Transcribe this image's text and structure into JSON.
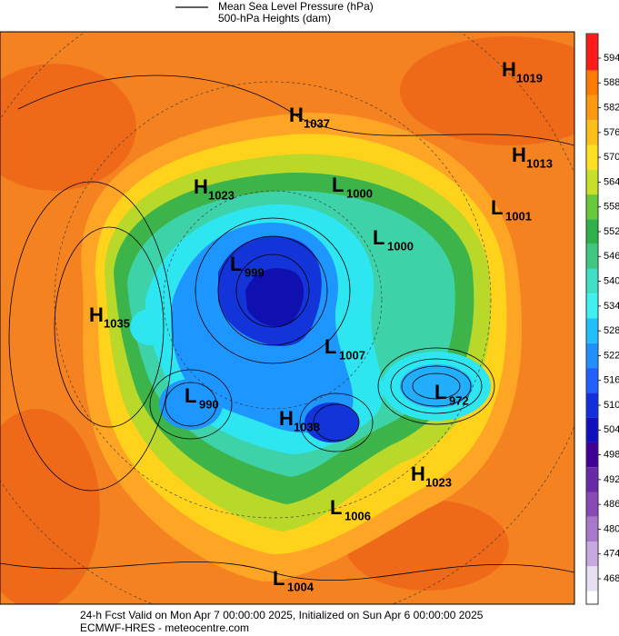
{
  "legend": [
    "Mean Sea Level Pressure (hPa)",
    "500-hPa Heights (dam)"
  ],
  "centers": [
    {
      "letter": "H",
      "value": 1019
    },
    {
      "letter": "H",
      "value": 1037
    },
    {
      "letter": "H",
      "value": 1013
    },
    {
      "letter": "H",
      "value": 1023
    },
    {
      "letter": "L",
      "value": 1000
    },
    {
      "letter": "L",
      "value": 1001
    },
    {
      "letter": "L",
      "value": 1000
    },
    {
      "letter": "L",
      "value": 999
    },
    {
      "letter": "H",
      "value": 1035
    },
    {
      "letter": "L",
      "value": 1007
    },
    {
      "letter": "L",
      "value": 972
    },
    {
      "letter": "L",
      "value": 990
    },
    {
      "letter": "H",
      "value": 1038
    },
    {
      "letter": "H",
      "value": 1023
    },
    {
      "letter": "L",
      "value": 1006
    },
    {
      "letter": "L",
      "value": 1004
    }
  ],
  "colorbar": {
    "ticks": [
      594,
      588,
      582,
      576,
      570,
      564,
      558,
      552,
      546,
      540,
      534,
      528,
      522,
      516,
      510,
      504,
      498,
      492,
      486,
      480,
      474,
      468
    ],
    "colors": [
      "#ff1a1a",
      "#ff7a00",
      "#ff9a10",
      "#ffbe18",
      "#ffe020",
      "#c8e028",
      "#66c83a",
      "#2fb04a",
      "#40c880",
      "#40e0c8",
      "#40f0f0",
      "#20c0ff",
      "#2090ff",
      "#2060ff",
      "#1030e0",
      "#1010c0",
      "#400098",
      "#6a2aa8",
      "#8848b8",
      "#a878cc",
      "#c8a8e0",
      "#e8e0f2"
    ]
  },
  "footer": [
    "24-h Fcst Valid on Mon Apr  7 00:00:00 2025, Initialized on Sun Apr  6 00:00:00 2025",
    "ECMWF-HRES - meteocentre.com"
  ]
}
